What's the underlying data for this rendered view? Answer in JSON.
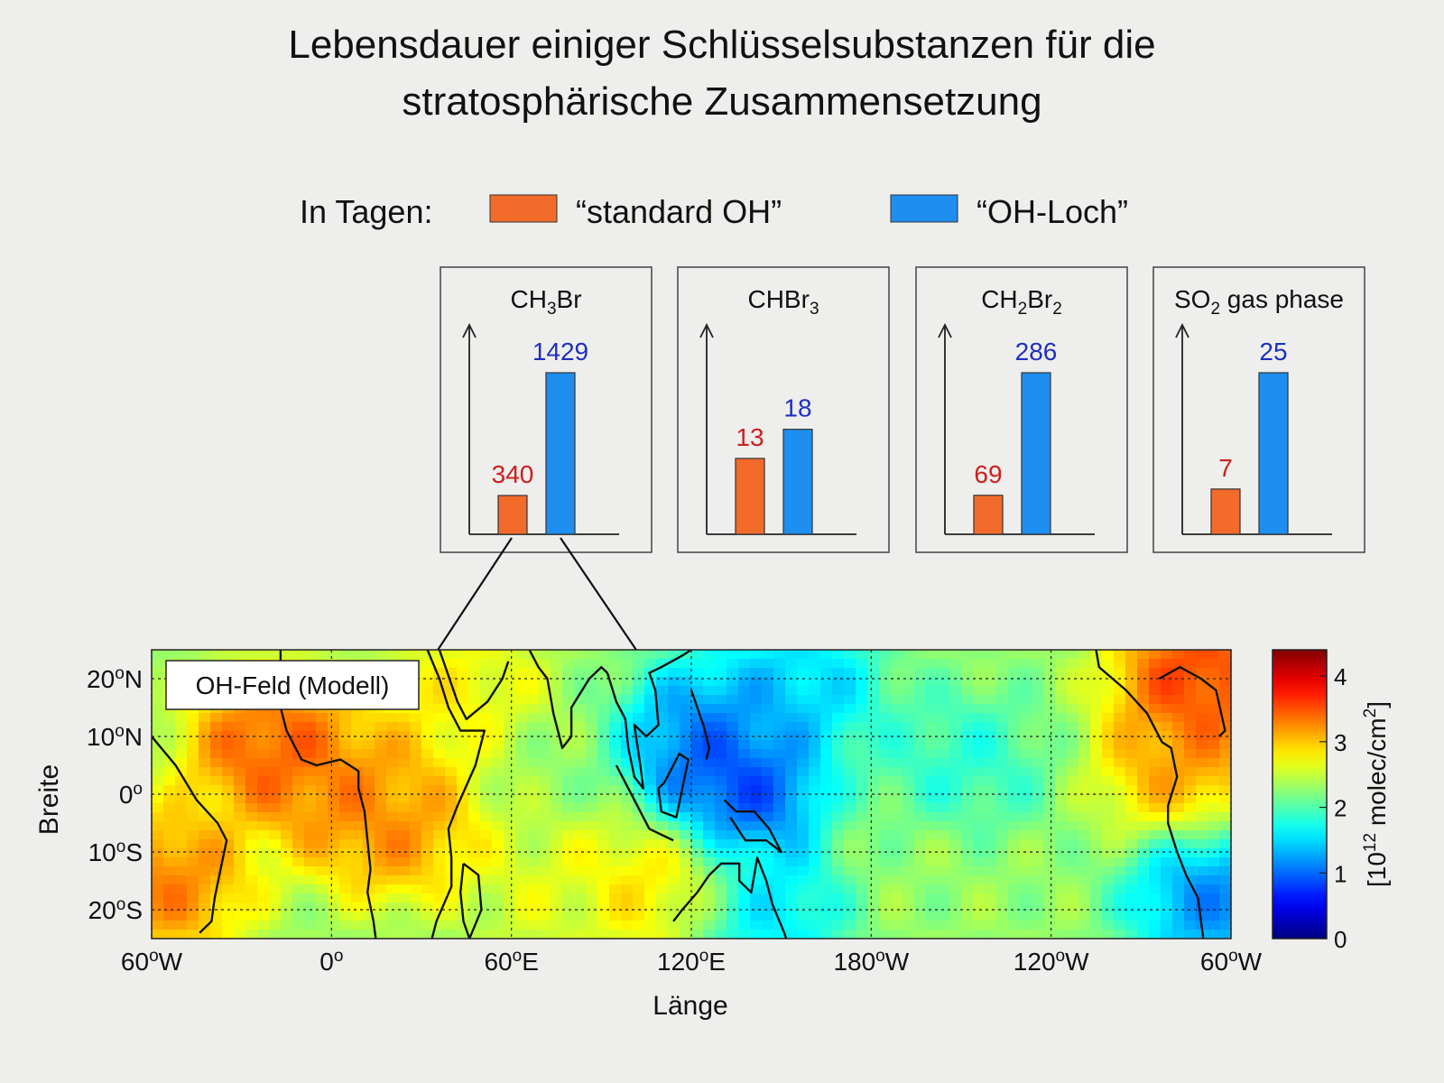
{
  "title": {
    "line1": "Lebensdauer einiger Schlüsselsubstanzen für die",
    "line2": "stratosphärische Zusammensetzung"
  },
  "legend": {
    "prefix": "In Tagen:",
    "items": [
      {
        "label": "“standard OH”",
        "color": "#f26b2a"
      },
      {
        "label": "“OH-Loch”",
        "color": "#1e8ff0"
      }
    ]
  },
  "colors": {
    "standard_bar": "#f26b2a",
    "hole_bar": "#1e8ff0",
    "standard_value": "#cc1f1f",
    "hole_value": "#1f2fbf",
    "axis": "#222222",
    "coastline": "#111111"
  },
  "chart_data": [
    {
      "type": "bar",
      "title": "CH3Br",
      "subscripts": [
        "",
        "3",
        "Br"
      ],
      "categories": [
        "“standard OH”",
        "“OH-Loch”"
      ],
      "values": [
        340,
        1429
      ]
    },
    {
      "type": "bar",
      "title": "CHBr3",
      "subscripts": [
        "CHBr",
        "3",
        ""
      ],
      "categories": [
        "“standard OH”",
        "“OH-Loch”"
      ],
      "values": [
        13,
        18
      ]
    },
    {
      "type": "bar",
      "title": "CH2Br2",
      "subscripts": [
        "CH",
        "2",
        "Br",
        "2"
      ],
      "categories": [
        "“standard OH”",
        "“OH-Loch”"
      ],
      "values": [
        69,
        286
      ]
    },
    {
      "type": "bar",
      "title": "SO2 gas phase",
      "subscripts": [
        "SO",
        "2",
        " gas phase"
      ],
      "categories": [
        "“standard OH”",
        "“OH-Loch”"
      ],
      "values": [
        7,
        25
      ]
    },
    {
      "type": "heatmap",
      "label_box": "OH-Feld (Modell)",
      "xlabel": "Länge",
      "ylabel": "Breite",
      "xticks": [
        "60°W",
        "0°",
        "60°E",
        "120°E",
        "180°W",
        "120°W",
        "60°W"
      ],
      "yticks": [
        "20°N",
        "10°N",
        "0°",
        "10°S",
        "20°S"
      ],
      "xlim_deg": [
        -60,
        300
      ],
      "ylim_deg": [
        -25,
        25
      ],
      "colorbar": {
        "ticks": [
          4,
          3,
          2,
          1,
          0
        ],
        "range": [
          0,
          4.4
        ],
        "label_parts": [
          "[10",
          "12",
          " molec/cm",
          "2",
          "]"
        ],
        "colormap": "jet"
      },
      "field_blobs": [
        {
          "lon": -20,
          "lat": 8,
          "value": 3.8
        },
        {
          "lon": 0,
          "lat": 2,
          "value": 3.4
        },
        {
          "lon": -55,
          "lat": -15,
          "value": 3.6
        },
        {
          "lon": 20,
          "lat": -5,
          "value": 3.5
        },
        {
          "lon": 30,
          "lat": 0,
          "value": 3.2
        },
        {
          "lon": 45,
          "lat": 15,
          "value": 3.0
        },
        {
          "lon": 70,
          "lat": -15,
          "value": 2.7
        },
        {
          "lon": 135,
          "lat": 0,
          "value": 0.4
        },
        {
          "lon": 125,
          "lat": 10,
          "value": 0.8
        },
        {
          "lon": 155,
          "lat": 18,
          "value": 1.2
        },
        {
          "lon": 145,
          "lat": -20,
          "value": 1.3
        },
        {
          "lon": 210,
          "lat": 5,
          "value": 1.7
        },
        {
          "lon": 200,
          "lat": -15,
          "value": 2.3
        },
        {
          "lon": 295,
          "lat": -18,
          "value": 0.8
        },
        {
          "lon": 290,
          "lat": 20,
          "value": 4.0
        },
        {
          "lon": 285,
          "lat": 5,
          "value": 3.4
        },
        {
          "lon": 110,
          "lat": -15,
          "value": 3.1
        },
        {
          "lon": 60,
          "lat": 5,
          "value": 2.2
        }
      ],
      "field_base_value": 2.3
    }
  ]
}
